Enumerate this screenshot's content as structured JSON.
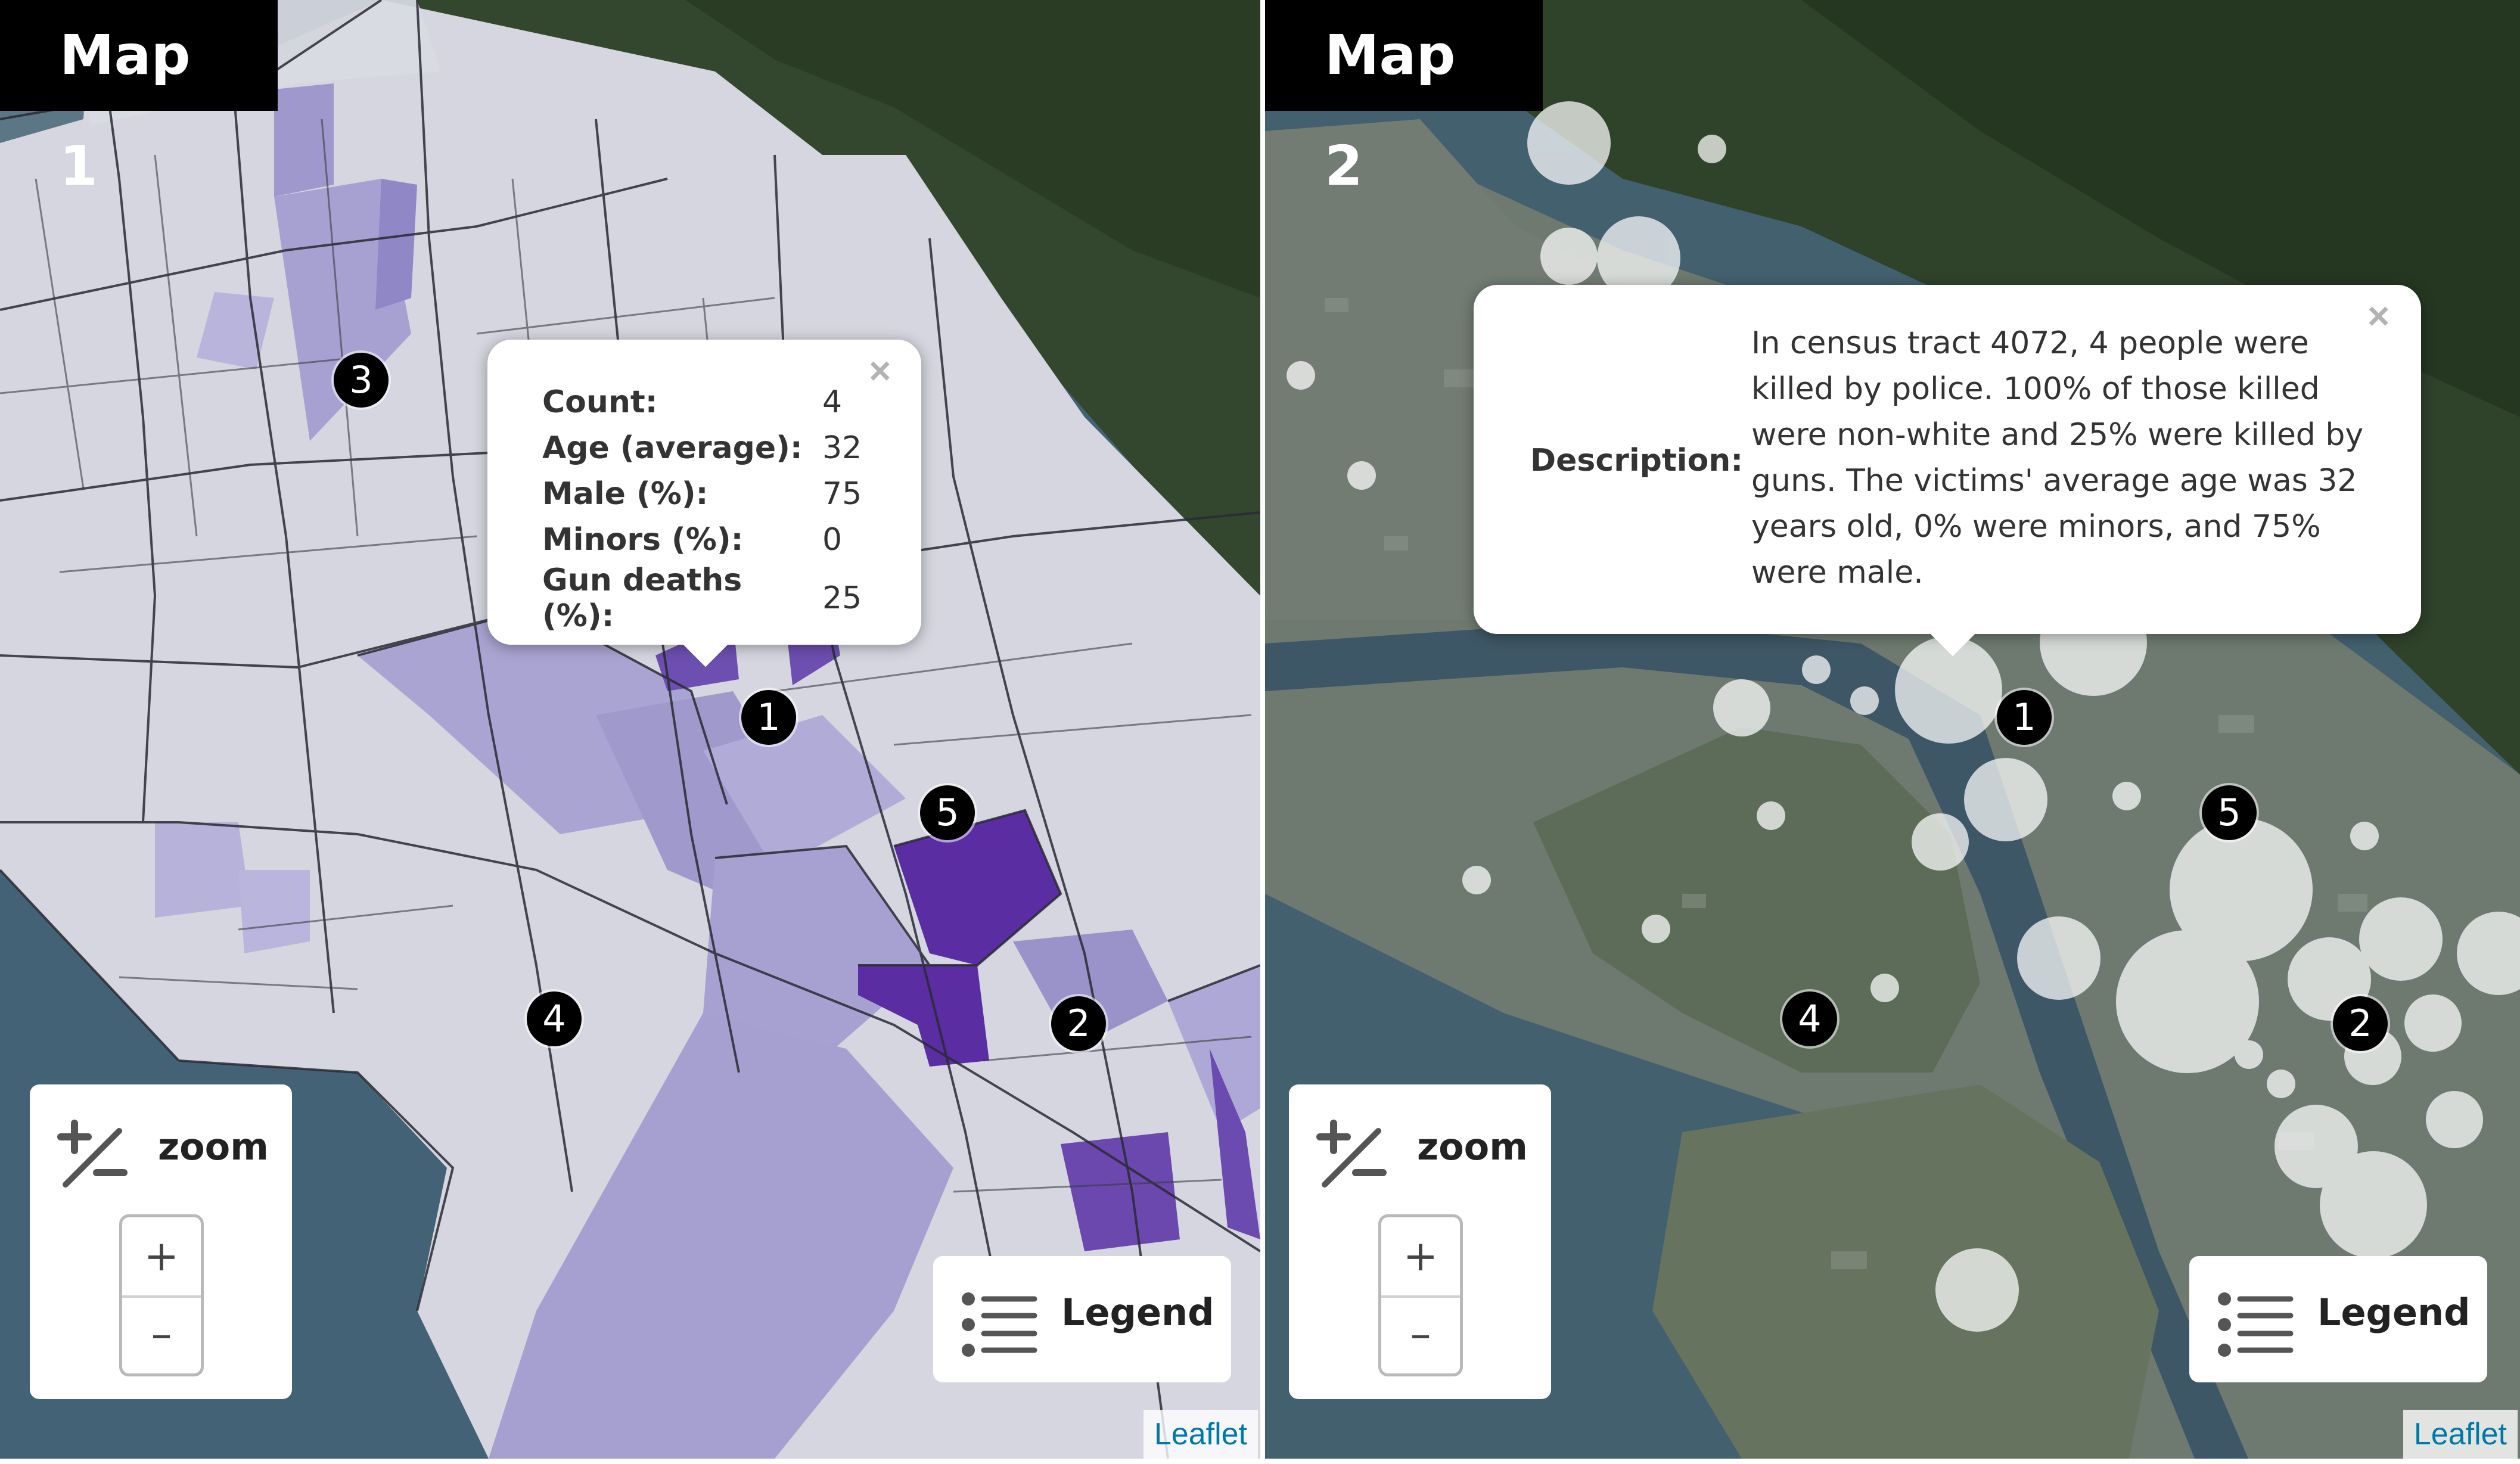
{
  "colors": {
    "tooltip_close": "#b3b3b3",
    "leaflet_link": "#0078a8",
    "tract_light": "#e0e0ea",
    "tract_mid": "#a9a2d2",
    "tract_dark": "#5c2ea3"
  },
  "maps": [
    {
      "title": "Map 1",
      "popup": {
        "rows": [
          {
            "key": "Count:",
            "value": "4"
          },
          {
            "key": "Age (average):",
            "value": "32"
          },
          {
            "key": "Male (%):",
            "value": "75"
          },
          {
            "key": "Minors (%):",
            "value": "0"
          },
          {
            "key": "Gun deaths (%):",
            "value": "25"
          }
        ],
        "close_icon": "×"
      },
      "markers": [
        "1",
        "2",
        "3",
        "4",
        "5"
      ],
      "zoom": {
        "label": "zoom",
        "in": "+",
        "out": "–",
        "icon": "plus-minus-icon"
      },
      "legend": {
        "label": "Legend",
        "icon": "list-icon"
      },
      "attribution": "Leaflet"
    },
    {
      "title": "Map 2",
      "popup": {
        "label": "Description:",
        "text": "In census tract 4072, 4 people were killed by police. 100% of those killed were non-white and 25% were killed by guns. The victims' average age was 32 years old, 0% were minors, and 75% were male.",
        "close_icon": "×"
      },
      "markers": [
        "1",
        "2",
        "4",
        "5"
      ],
      "zoom": {
        "label": "zoom",
        "in": "+",
        "out": "–",
        "icon": "plus-minus-icon"
      },
      "legend": {
        "label": "Legend",
        "icon": "list-icon"
      },
      "attribution": "Leaflet"
    }
  ]
}
